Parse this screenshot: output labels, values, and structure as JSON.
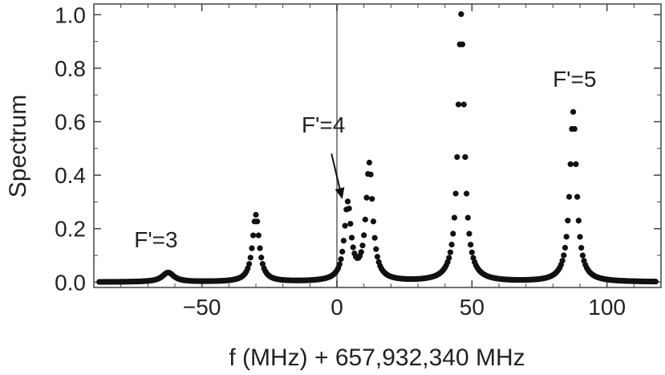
{
  "chart_data": {
    "type": "scatter",
    "title": "",
    "xlabel": "f (MHz) + 657,932,340 MHz",
    "ylabel": "Spectrum",
    "xlim": [
      -90,
      120
    ],
    "ylim": [
      -0.02,
      1.04
    ],
    "xticks": [
      -50,
      0,
      50,
      100
    ],
    "xtick_labels": [
      "−50",
      "0",
      "50",
      "100"
    ],
    "yticks": [
      0.0,
      0.2,
      0.4,
      0.6,
      0.8,
      1.0
    ],
    "ytick_labels": [
      "0.0",
      "0.2",
      "0.4",
      "0.6",
      "0.8",
      "1.0"
    ],
    "grid": false,
    "vertical_line_x": 0,
    "marker_color": "#111111",
    "axis_color": "#444444",
    "annotations": [
      {
        "text": "F'=3",
        "x": -67,
        "y": 0.13
      },
      {
        "text": "F'=4",
        "x": -5,
        "y": 0.56
      },
      {
        "text": "F'=5",
        "x": 88,
        "y": 0.73
      }
    ],
    "arrow": {
      "from_x": -2,
      "from_y": 0.48,
      "to_x": 2,
      "to_y": 0.31
    },
    "peaks": [
      {
        "label": "F'=3",
        "center": -62.5,
        "height": 0.035,
        "width": 2.6
      },
      {
        "center": -30,
        "height": 0.25,
        "width": 1.5
      },
      {
        "label": "F'=4",
        "center": 4,
        "height": 0.285,
        "width": 1.5
      },
      {
        "center": 12,
        "height": 0.435,
        "width": 1.5
      },
      {
        "center": 46,
        "height": 1.0,
        "width": 1.4
      },
      {
        "label": "F'=5",
        "center": 87.5,
        "height": 0.635,
        "width": 1.5
      }
    ],
    "x_start": -88,
    "x_end": 118,
    "x_step": 0.5
  }
}
